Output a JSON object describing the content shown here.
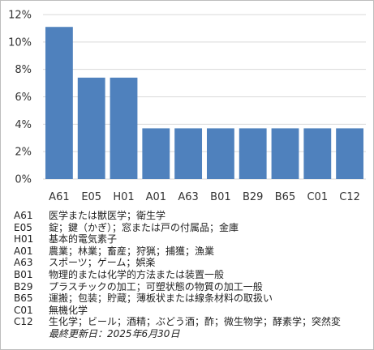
{
  "chart_data": {
    "type": "bar",
    "categories": [
      "A61",
      "E05",
      "H01",
      "A01",
      "A63",
      "B01",
      "B29",
      "B65",
      "C01",
      "C12"
    ],
    "values": [
      11.1,
      7.4,
      7.4,
      3.7,
      3.7,
      3.7,
      3.7,
      3.7,
      3.7,
      3.7
    ],
    "yticks": [
      "0%",
      "2%",
      "4%",
      "6%",
      "8%",
      "10%",
      "12%"
    ],
    "ylim": [
      0,
      12
    ],
    "grid": true,
    "bar_color": "#4f81bd",
    "grid_color": "#d9d9d9",
    "title": "",
    "xlabel": "",
    "ylabel": ""
  },
  "legend": [
    {
      "code": "A61",
      "desc": "医学または獣医学；衛生学"
    },
    {
      "code": "E05",
      "desc": "錠；鍵（かぎ）；窓または戸の付属品；金庫"
    },
    {
      "code": "H01",
      "desc": "基本的電気素子"
    },
    {
      "code": "A01",
      "desc": "農業；林業；畜産；狩猟；捕獲；漁業"
    },
    {
      "code": "A63",
      "desc": "スポーツ；ゲーム；娯楽"
    },
    {
      "code": "B01",
      "desc": "物理的または化学的方法または装置一般"
    },
    {
      "code": "B29",
      "desc": "プラスチックの加工；可塑状態の物質の加工一般"
    },
    {
      "code": "B65",
      "desc": "運搬；包装；貯蔵；薄板状または線条材料の取扱い"
    },
    {
      "code": "C01",
      "desc": "無機化学"
    },
    {
      "code": "C12",
      "desc": "生化学；ビール；酒精；ぶどう酒；酢；微生物学；酵素学；突然変"
    }
  ],
  "updated": "最終更新日：2025年6月30日"
}
